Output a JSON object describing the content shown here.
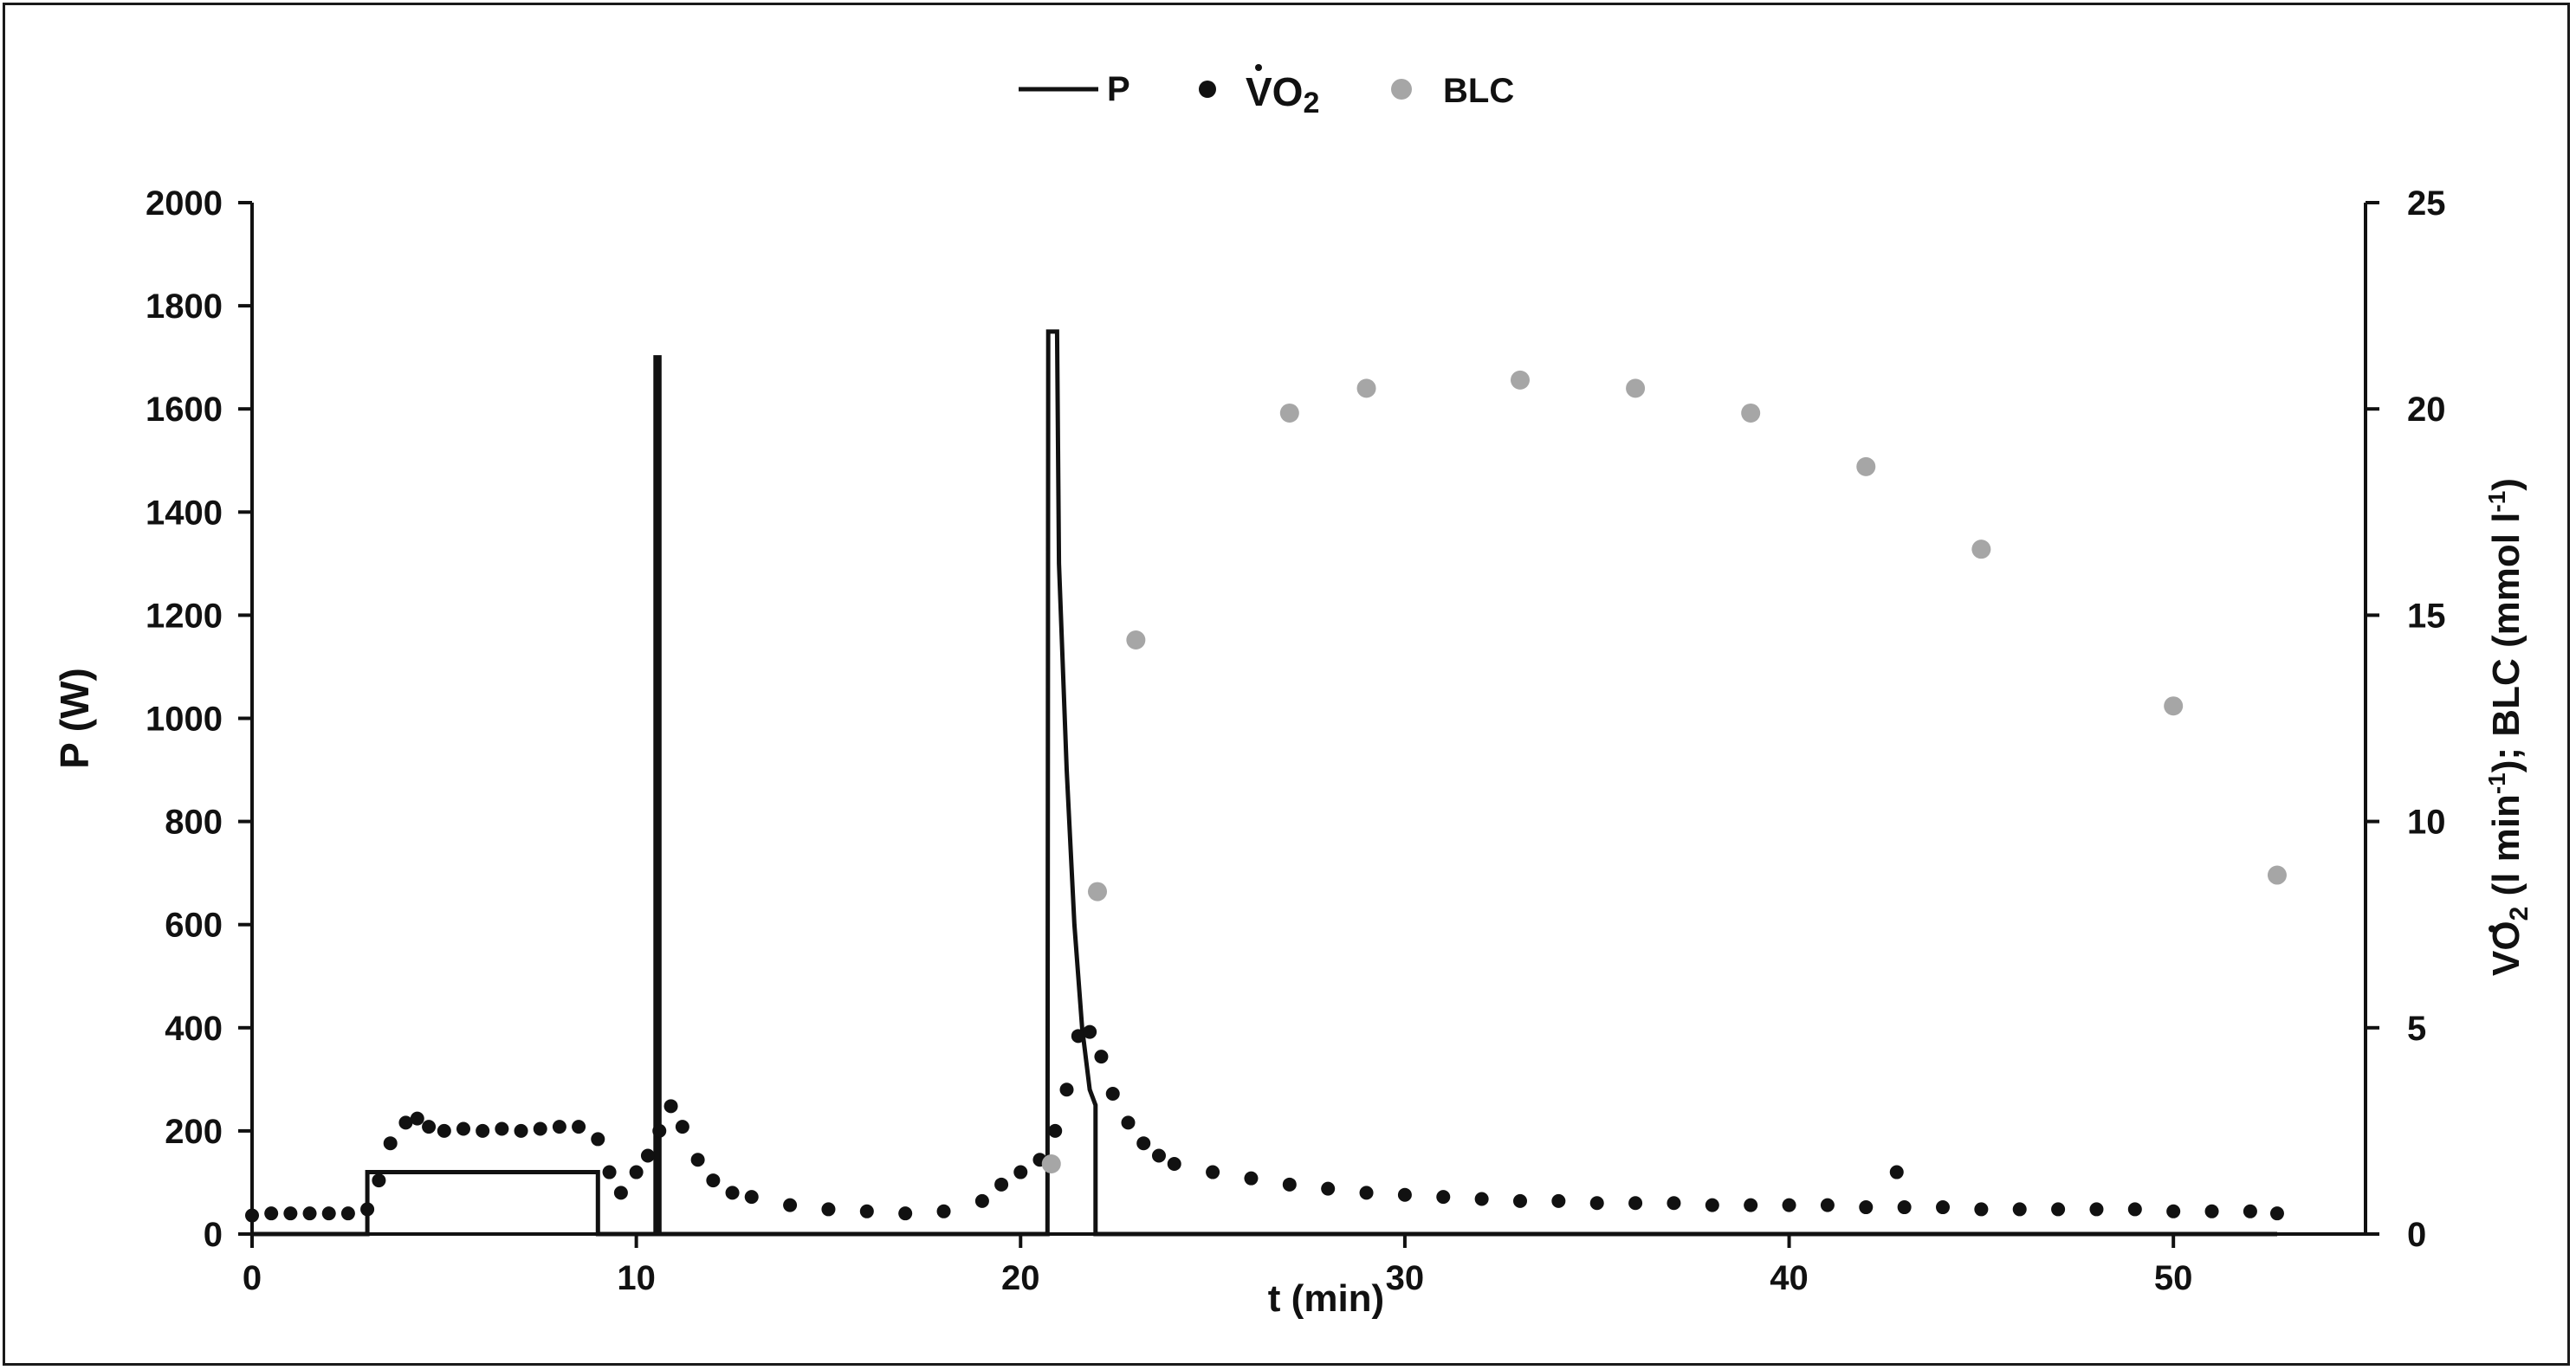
{
  "chart_data": {
    "type": "line",
    "legend": {
      "position": "top-center",
      "items": [
        {
          "key": "P",
          "label": "P",
          "marker": "line",
          "color": "#111111"
        },
        {
          "key": "VO2",
          "label": "VO",
          "label_sub": "2",
          "dot_accent": true,
          "marker": "dot",
          "color": "#111111"
        },
        {
          "key": "BLC",
          "label": "BLC",
          "marker": "dot",
          "color": "#a6a6a6"
        }
      ]
    },
    "xlabel": "t (min)",
    "ylabel_left": "P (W)",
    "ylabel_right": {
      "main": "VO",
      "sub": "2",
      "tail": " (l min",
      "sup1": "-1",
      "mid": "); BLC (mmol l",
      "sup2": "-1",
      "end": ")"
    },
    "xlim": [
      0,
      55
    ],
    "xticks": [
      0,
      10,
      20,
      30,
      40,
      50
    ],
    "ylim_left": [
      0,
      2000
    ],
    "yticks_left": [
      0,
      200,
      400,
      600,
      800,
      1000,
      1200,
      1400,
      1600,
      1800,
      2000
    ],
    "ylim_right": [
      0,
      25
    ],
    "yticks_right": [
      0,
      5,
      10,
      15,
      20,
      25
    ],
    "grid": false,
    "series": [
      {
        "name": "P",
        "axis": "left",
        "kind": "line",
        "color": "#111111",
        "x": [
          0,
          3.0,
          3.0,
          9.0,
          9.0,
          10.5,
          10.5,
          10.6,
          10.6,
          10.9,
          20.7,
          20.72,
          20.95,
          21.0,
          21.2,
          21.4,
          21.6,
          21.8,
          21.95,
          21.95,
          22.0,
          52.7
        ],
        "y": [
          0,
          0,
          120,
          120,
          0,
          0,
          1700,
          1700,
          0,
          0,
          0,
          1750,
          1750,
          1300,
          900,
          600,
          400,
          280,
          250,
          0,
          0,
          0
        ]
      },
      {
        "name": "VO2",
        "axis": "right",
        "kind": "scatter",
        "color": "#111111",
        "x": [
          0,
          0.5,
          1,
          1.5,
          2,
          2.5,
          3,
          3.3,
          3.6,
          4.0,
          4.3,
          4.6,
          5,
          5.5,
          6,
          6.5,
          7,
          7.5,
          8,
          8.5,
          9,
          9.3,
          9.6,
          10,
          10.3,
          10.6,
          10.9,
          11.2,
          11.6,
          12,
          12.5,
          13,
          14,
          15,
          16,
          17,
          18,
          19,
          19.5,
          20,
          20.5,
          20.9,
          21.2,
          21.5,
          21.8,
          22.1,
          22.4,
          22.8,
          23.2,
          23.6,
          24,
          25,
          26,
          27,
          28,
          29,
          30,
          31,
          32,
          33,
          34,
          35,
          36,
          37,
          38,
          39,
          40,
          41,
          42,
          42.8,
          43,
          44,
          45,
          46,
          47,
          48,
          49,
          50,
          51,
          52,
          52.7
        ],
        "y": [
          0.45,
          0.5,
          0.5,
          0.5,
          0.5,
          0.5,
          0.6,
          1.3,
          2.2,
          2.7,
          2.8,
          2.6,
          2.5,
          2.55,
          2.5,
          2.55,
          2.5,
          2.55,
          2.6,
          2.6,
          2.3,
          1.5,
          1.0,
          1.5,
          1.9,
          2.5,
          3.1,
          2.6,
          1.8,
          1.3,
          1.0,
          0.9,
          0.7,
          0.6,
          0.55,
          0.5,
          0.55,
          0.8,
          1.2,
          1.5,
          1.8,
          2.5,
          3.5,
          4.8,
          4.9,
          4.3,
          3.4,
          2.7,
          2.2,
          1.9,
          1.7,
          1.5,
          1.35,
          1.2,
          1.1,
          1.0,
          0.95,
          0.9,
          0.85,
          0.8,
          0.8,
          0.75,
          0.75,
          0.75,
          0.7,
          0.7,
          0.7,
          0.7,
          0.65,
          1.5,
          0.65,
          0.65,
          0.6,
          0.6,
          0.6,
          0.6,
          0.6,
          0.55,
          0.55,
          0.55,
          0.5
        ]
      },
      {
        "name": "BLC",
        "axis": "right",
        "kind": "scatter",
        "color": "#a6a6a6",
        "x": [
          20.8,
          22,
          23,
          27,
          29,
          33,
          36,
          39,
          42,
          45,
          50,
          52.7
        ],
        "y": [
          1.7,
          8.3,
          14.4,
          19.9,
          20.5,
          20.7,
          20.5,
          19.9,
          18.6,
          16.6,
          12.8,
          8.7
        ]
      }
    ]
  }
}
